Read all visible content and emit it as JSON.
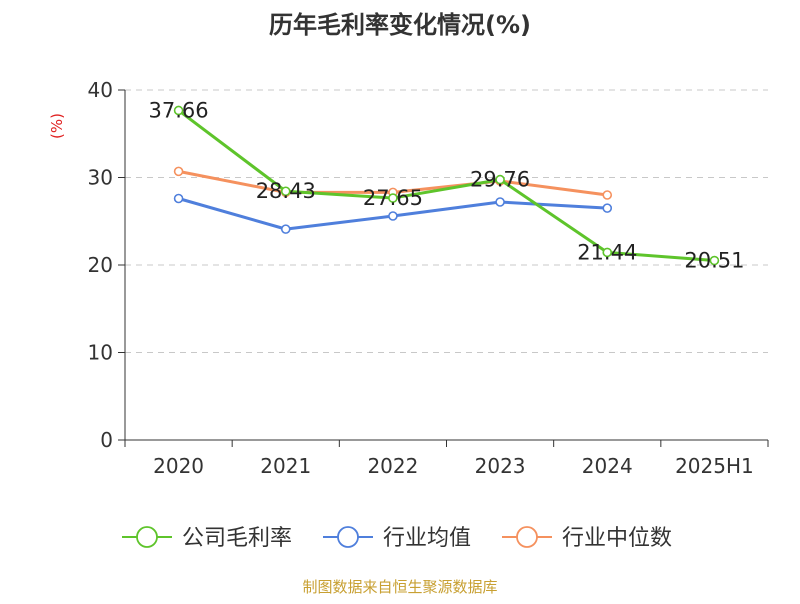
{
  "chart_data": {
    "type": "line",
    "title": "历年毛利率变化情况(%)",
    "ylabel": "(%)",
    "xlabel": "",
    "categories": [
      "2020",
      "2021",
      "2022",
      "2023",
      "2024",
      "2025H1"
    ],
    "yticks": [
      "0",
      "10",
      "20",
      "30",
      "40"
    ],
    "ylim": [
      0,
      40
    ],
    "grid": true,
    "legend_position": "bottom",
    "series": [
      {
        "name": "公司毛利率",
        "color": "#5ec42b",
        "values": [
          37.66,
          28.43,
          27.65,
          29.76,
          21.44,
          20.51
        ],
        "labels": [
          "37.66",
          "28.43",
          "27.65",
          "29.76",
          "21.44",
          "20.51"
        ]
      },
      {
        "name": "行业均值",
        "color": "#4f7fdc",
        "values": [
          27.6,
          24.1,
          25.6,
          27.2,
          26.5,
          null
        ]
      },
      {
        "name": "行业中位数",
        "color": "#f5915e",
        "values": [
          30.7,
          28.3,
          28.3,
          29.6,
          28.0,
          null
        ]
      }
    ]
  },
  "footer": {
    "source": "制图数据来自恒生聚源数据库"
  }
}
